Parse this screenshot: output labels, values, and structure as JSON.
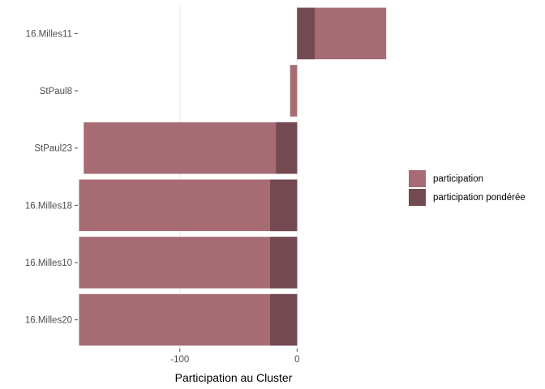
{
  "chart_data": {
    "type": "bar",
    "orientation": "horizontal",
    "categories": [
      "16.Milles11",
      "StPaul8",
      "StPaul23",
      "16.Milles18",
      "16.Milles10",
      "16.Milles20"
    ],
    "series": [
      {
        "name": "participation",
        "values": [
          76,
          -6,
          -182,
          -186,
          -186,
          -186
        ],
        "color": "#a66b73"
      },
      {
        "name": "participation pondérée",
        "values": [
          15,
          0,
          -18,
          -23,
          -23,
          -23
        ],
        "color": "#734a51"
      }
    ],
    "xlabel": "Participation au Cluster",
    "ylabel": "",
    "xlim": [
      -187,
      80
    ],
    "xticks": [
      -100,
      0
    ],
    "xtick_labels": [
      "-100",
      "0"
    ],
    "grid": "vertical-major",
    "legend_position": "right"
  }
}
